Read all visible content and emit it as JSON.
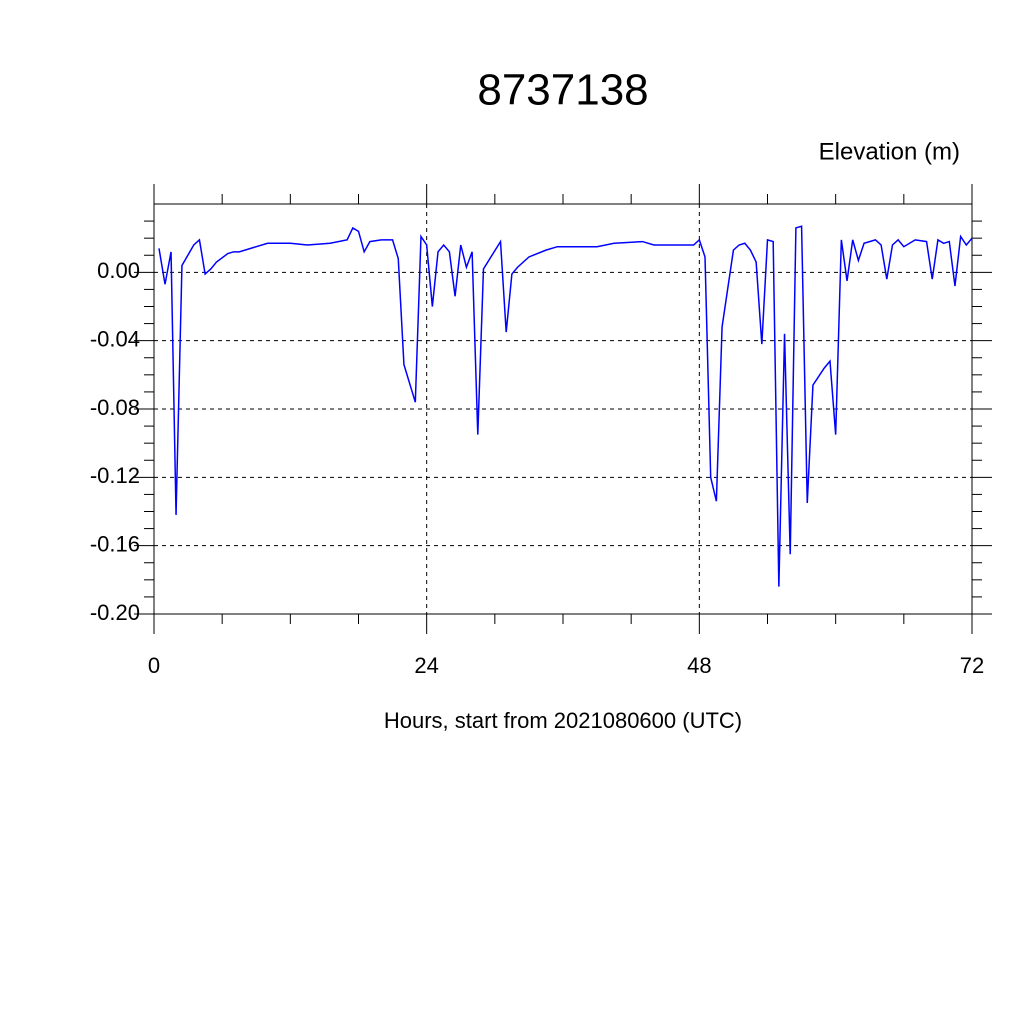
{
  "chart_data": {
    "type": "line",
    "title": "8737138",
    "subtitle": "Elevation (m)",
    "x_label": "Hours, start from 2021080600 (UTC)",
    "x": [
      0.44,
      0.97,
      1.5,
      1.94,
      2.46,
      3.5,
      4,
      4.5,
      5,
      5.5,
      6.5,
      7,
      7.5,
      10,
      12,
      13.5,
      15.5,
      17,
      17.5,
      18,
      18.5,
      19,
      20,
      20.5,
      21,
      21.5,
      22,
      23,
      23.5,
      24,
      24.5,
      25,
      25.5,
      26,
      26.5,
      27,
      27.5,
      28,
      28.5,
      29,
      30.5,
      31,
      31.5,
      32,
      33,
      34.5,
      35.5,
      39,
      40.5,
      43,
      44,
      45,
      47,
      47.5,
      48,
      48.5,
      49,
      49.5,
      50,
      51,
      51.5,
      52,
      52.5,
      53,
      53.5,
      54,
      54.5,
      55,
      55.5,
      56,
      56.5,
      57,
      57.5,
      58,
      59,
      59.5,
      60,
      60.5,
      61,
      61.5,
      62,
      62.5,
      63.5,
      64,
      64.5,
      65,
      65.5,
      66,
      67,
      68,
      68.5,
      69,
      69.5,
      70,
      70.5,
      71,
      71.5,
      72
    ],
    "values": [
      0.014,
      -0.007,
      0.012,
      -0.142,
      0.004,
      0.016,
      0.019,
      -0.001,
      0.002,
      0.006,
      0.011,
      0.012,
      0.012,
      0.017,
      0.017,
      0.016,
      0.017,
      0.019,
      0.026,
      0.024,
      0.012,
      0.018,
      0.019,
      0.019,
      0.019,
      0.008,
      -0.054,
      -0.076,
      0.021,
      0.016,
      -0.02,
      0.012,
      0.016,
      0.012,
      -0.014,
      0.016,
      0.003,
      0.012,
      -0.095,
      0.002,
      0.018,
      -0.035,
      -0.001,
      0.003,
      0.009,
      0.013,
      0.015,
      0.015,
      0.017,
      0.018,
      0.016,
      0.016,
      0.016,
      0.016,
      0.019,
      0.009,
      -0.12,
      -0.134,
      -0.032,
      0.013,
      0.016,
      0.017,
      0.013,
      0.006,
      -0.042,
      0.019,
      0.018,
      -0.184,
      -0.036,
      -0.165,
      0.026,
      0.027,
      -0.135,
      -0.066,
      -0.056,
      -0.052,
      -0.095,
      0.019,
      -0.005,
      0.019,
      0.007,
      0.017,
      0.019,
      0.016,
      -0.004,
      0.016,
      0.019,
      0.015,
      0.019,
      0.018,
      -0.004,
      0.019,
      0.017,
      0.018,
      -0.008,
      0.021,
      0.016,
      0.02
    ],
    "color": "#0000ff",
    "xlim": [
      0,
      72
    ],
    "xticks": [
      0,
      24,
      48,
      72
    ],
    "xminorticks": [
      6,
      12,
      18,
      30,
      36,
      42,
      54,
      60,
      66
    ],
    "ylim": [
      -0.2,
      0.04
    ],
    "yticks": [
      {
        "value": -0.2,
        "label": "-0.20"
      },
      {
        "value": -0.16,
        "label": "-0.16"
      },
      {
        "value": -0.12,
        "label": "-0.12"
      },
      {
        "value": -0.08,
        "label": "-0.08"
      },
      {
        "value": -0.04,
        "label": "-0.04"
      },
      {
        "value": 0,
        "label": "0.00"
      }
    ],
    "yminorticks": [
      -0.19,
      -0.18,
      -0.17,
      -0.15,
      -0.14,
      -0.13,
      -0.11,
      -0.1,
      -0.09,
      -0.07,
      -0.06,
      -0.05,
      -0.03,
      -0.02,
      -0.01,
      0.01,
      0.02,
      0.03
    ],
    "grid": true
  }
}
